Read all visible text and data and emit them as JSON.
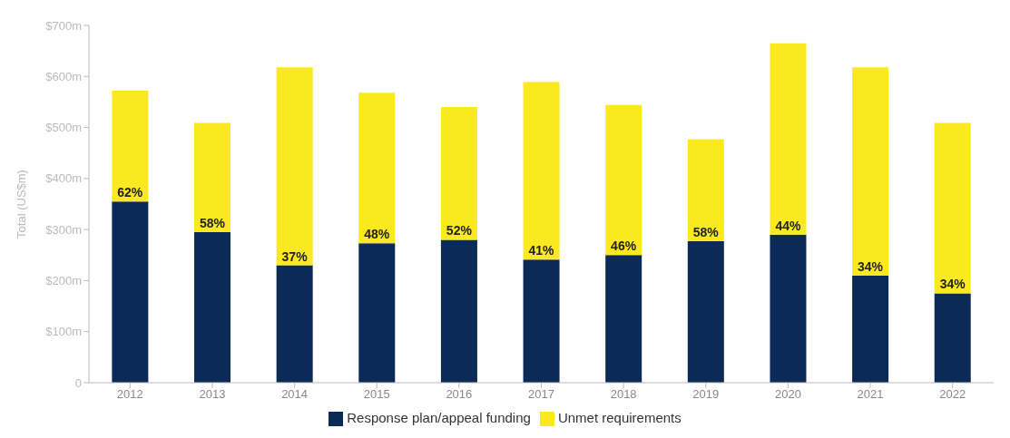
{
  "chart_data": {
    "type": "bar",
    "stacked": true,
    "ylabel": "Total (US$m)",
    "categories": [
      "2012",
      "2013",
      "2014",
      "2015",
      "2016",
      "2017",
      "2018",
      "2019",
      "2020",
      "2021",
      "2022"
    ],
    "series": [
      {
        "name": "Response plan/appeal funding",
        "color": "#0b2a55",
        "values": [
          355,
          295,
          230,
          273,
          280,
          241,
          250,
          277,
          290,
          210,
          175
        ]
      },
      {
        "name": "Unmet requirements",
        "color": "#fbe91f",
        "values": [
          217,
          214,
          388,
          295,
          260,
          348,
          294,
          200,
          375,
          408,
          334
        ]
      }
    ],
    "annotations": [
      {
        "text": "62%",
        "x": "2012",
        "y": 355
      },
      {
        "text": "58%",
        "x": "2013",
        "y": 295
      },
      {
        "text": "37%",
        "x": "2014",
        "y": 230
      },
      {
        "text": "48%",
        "x": "2015",
        "y": 273
      },
      {
        "text": "52%",
        "x": "2016",
        "y": 280
      },
      {
        "text": "41%",
        "x": "2017",
        "y": 241
      },
      {
        "text": "46%",
        "x": "2018",
        "y": 250
      },
      {
        "text": "58%",
        "x": "2019",
        "y": 277
      },
      {
        "text": "44%",
        "x": "2020",
        "y": 290
      },
      {
        "text": "34%",
        "x": "2021",
        "y": 210
      },
      {
        "text": "34%",
        "x": "2022",
        "y": 175
      }
    ],
    "ylim": [
      0,
      700
    ],
    "yticks": [
      0,
      {
        "value": 100,
        "label": "$100m"
      },
      {
        "value": 200,
        "label": "$200m"
      },
      {
        "value": 300,
        "label": "$300m"
      },
      {
        "value": 400,
        "label": "$400m"
      },
      {
        "value": 500,
        "label": "$500m"
      },
      {
        "value": 600,
        "label": "$600m"
      },
      {
        "value": 700,
        "label": "$700m"
      }
    ],
    "grid": false,
    "legend": "bottom"
  }
}
